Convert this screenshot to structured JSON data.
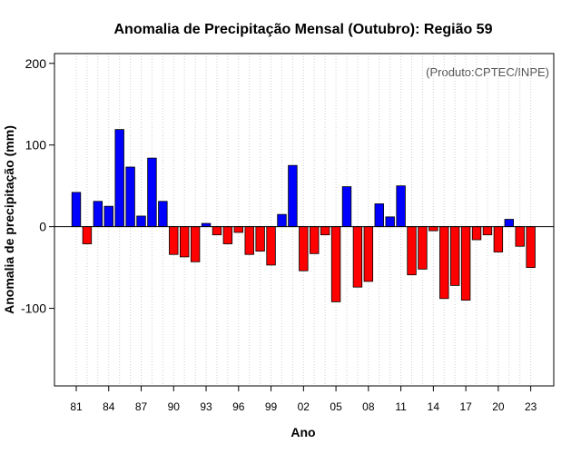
{
  "chart_data": {
    "type": "bar",
    "title": "Anomalia de Precipitação Mensal (Outubro): Região 59",
    "xlabel": "Ano",
    "ylabel": "Anomalia de precipitação (mm)",
    "source_note": "(Produto:CPTEC/INPE)",
    "ylim": [
      -195,
      212
    ],
    "yticks": [
      -100,
      0,
      100,
      200
    ],
    "grid": "vertical dotted lines at each year",
    "colors": {
      "positive": "#0000ff",
      "negative": "#ff0000",
      "grid": "#d0d0d0",
      "zero_line": "#000000"
    },
    "years": [
      1981,
      1982,
      1983,
      1984,
      1985,
      1986,
      1987,
      1988,
      1989,
      1990,
      1991,
      1992,
      1993,
      1994,
      1995,
      1996,
      1997,
      1998,
      1999,
      2000,
      2001,
      2002,
      2003,
      2004,
      2005,
      2006,
      2007,
      2008,
      2009,
      2010,
      2011,
      2012,
      2013,
      2014,
      2015,
      2016,
      2017,
      2018,
      2019,
      2020,
      2021,
      2022,
      2023
    ],
    "values": [
      42,
      -21,
      31,
      25,
      119,
      73,
      13,
      84,
      31,
      -34,
      -37,
      -43,
      4,
      -10,
      -21,
      -7,
      -34,
      -30,
      -47,
      15,
      75,
      -54,
      -33,
      -10,
      -92,
      49,
      -74,
      -67,
      28,
      12,
      50,
      -59,
      -52,
      -5,
      -88,
      -72,
      -90,
      -16,
      -10,
      -31,
      9,
      -24,
      -50
    ],
    "xtick_labels": [
      "81",
      "84",
      "87",
      "90",
      "93",
      "96",
      "99",
      "02",
      "05",
      "08",
      "11",
      "14",
      "17",
      "20",
      "23"
    ],
    "xtick_years": [
      1981,
      1984,
      1987,
      1990,
      1993,
      1996,
      1999,
      2002,
      2005,
      2008,
      2011,
      2014,
      2017,
      2020,
      2023
    ]
  }
}
